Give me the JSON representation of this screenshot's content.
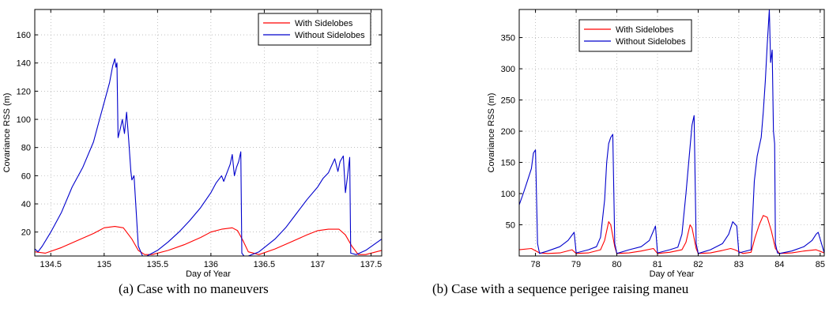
{
  "chart_data": [
    {
      "type": "line",
      "caption": "(a) Case with no maneuvers",
      "xlabel": "Day of Year",
      "ylabel": "Covariance RSS (m)",
      "xlim": [
        134.35,
        137.6
      ],
      "ylim": [
        3,
        178
      ],
      "xticks": [
        134.5,
        135,
        135.5,
        136,
        136.5,
        137,
        137.5
      ],
      "xtick_labels": [
        "134.5",
        "135",
        "135.5",
        "136",
        "136.5",
        "137",
        "137.5"
      ],
      "yticks": [
        20,
        40,
        60,
        80,
        100,
        120,
        140,
        160
      ],
      "ytick_labels": [
        "20",
        "40",
        "60",
        "80",
        "100",
        "120",
        "140",
        "160"
      ],
      "grid": true,
      "legend_position": "top-right",
      "series": [
        {
          "name": "With Sidelobes",
          "color": "#ff0000",
          "x": [
            134.35,
            134.45,
            134.6,
            134.75,
            134.9,
            135.0,
            135.1,
            135.18,
            135.26,
            135.32,
            135.38,
            135.45,
            135.6,
            135.75,
            135.9,
            136.0,
            136.1,
            136.2,
            136.25,
            136.3,
            136.35,
            136.45,
            136.6,
            136.75,
            136.9,
            137.0,
            137.1,
            137.2,
            137.26,
            137.32,
            137.38,
            137.45,
            137.6
          ],
          "y": [
            6,
            5,
            9,
            14,
            19,
            23,
            24,
            23,
            15,
            7,
            4,
            4,
            7,
            11,
            16,
            20,
            22,
            23,
            21,
            14,
            6,
            4,
            8,
            13,
            18,
            21,
            22,
            22,
            18,
            10,
            4,
            4,
            7
          ]
        },
        {
          "name": "Without Sidelobes",
          "color": "#0000cc",
          "x": [
            134.35,
            134.38,
            134.42,
            134.5,
            134.6,
            134.7,
            134.8,
            134.9,
            134.95,
            135.0,
            135.05,
            135.08,
            135.1,
            135.11,
            135.12,
            135.13,
            135.15,
            135.17,
            135.19,
            135.21,
            135.23,
            135.25,
            135.26,
            135.28,
            135.32,
            135.36,
            135.4,
            135.5,
            135.6,
            135.7,
            135.8,
            135.9,
            136.0,
            136.05,
            136.1,
            136.12,
            136.15,
            136.18,
            136.2,
            136.22,
            136.24,
            136.26,
            136.28,
            136.29,
            136.31,
            136.35,
            136.45,
            136.6,
            136.7,
            136.8,
            136.9,
            137.0,
            137.05,
            137.1,
            137.13,
            137.16,
            137.19,
            137.21,
            137.24,
            137.26,
            137.28,
            137.3,
            137.31,
            137.36,
            137.45,
            137.6
          ],
          "y": [
            8,
            6,
            10,
            20,
            34,
            52,
            66,
            84,
            98,
            112,
            126,
            138,
            143,
            137,
            140,
            87,
            93,
            100,
            90,
            105,
            85,
            63,
            57,
            60,
            10,
            3,
            3,
            7,
            13,
            20,
            28,
            37,
            48,
            55,
            60,
            56,
            62,
            68,
            75,
            60,
            66,
            70,
            77,
            5,
            3,
            3,
            6,
            15,
            23,
            33,
            43,
            52,
            58,
            62,
            67,
            72,
            63,
            70,
            74,
            48,
            60,
            73,
            5,
            4,
            7,
            15
          ]
        }
      ]
    },
    {
      "type": "line",
      "caption": "(b) Case with a sequence perigee raising maneu",
      "xlabel": "Day of Year",
      "ylabel": "Covariance RSS (m)",
      "xlim": [
        77.6,
        85.1
      ],
      "ylim": [
        0,
        395
      ],
      "xticks": [
        78,
        79,
        80,
        81,
        82,
        83,
        84,
        85
      ],
      "xtick_labels": [
        "78",
        "79",
        "80",
        "81",
        "82",
        "83",
        "84",
        "85"
      ],
      "yticks": [
        50,
        100,
        150,
        200,
        250,
        300,
        350
      ],
      "ytick_labels": [
        "50",
        "100",
        "150",
        "200",
        "250",
        "300",
        "350"
      ],
      "grid": true,
      "legend_position": "top-left",
      "series": [
        {
          "name": "With Sidelobes",
          "color": "#ff0000",
          "x": [
            77.6,
            77.9,
            78.1,
            78.3,
            78.6,
            78.9,
            79.0,
            79.3,
            79.6,
            79.7,
            79.8,
            79.85,
            79.95,
            80.0,
            80.3,
            80.6,
            80.9,
            81.0,
            81.3,
            81.6,
            81.7,
            81.8,
            81.85,
            81.95,
            82.0,
            82.3,
            82.6,
            82.8,
            82.9,
            83.1,
            83.3,
            83.4,
            83.5,
            83.6,
            83.7,
            83.8,
            83.9,
            84.0,
            84.3,
            84.6,
            84.9,
            85.1
          ],
          "y": [
            10,
            12,
            5,
            4,
            5,
            10,
            4,
            5,
            10,
            25,
            55,
            50,
            15,
            4,
            5,
            8,
            12,
            4,
            6,
            10,
            22,
            50,
            45,
            12,
            4,
            5,
            9,
            12,
            10,
            4,
            6,
            30,
            50,
            65,
            62,
            40,
            12,
            4,
            5,
            8,
            10,
            5
          ]
        },
        {
          "name": "Without Sidelobes",
          "color": "#0000cc",
          "x": [
            77.6,
            77.7,
            77.8,
            77.9,
            77.95,
            78.0,
            78.05,
            78.1,
            78.3,
            78.6,
            78.8,
            78.95,
            79.0,
            79.3,
            79.5,
            79.6,
            79.7,
            79.75,
            79.8,
            79.85,
            79.9,
            79.95,
            80.0,
            80.3,
            80.6,
            80.8,
            80.9,
            80.95,
            81.0,
            81.3,
            81.5,
            81.6,
            81.7,
            81.8,
            81.85,
            81.9,
            81.95,
            82.0,
            82.3,
            82.6,
            82.75,
            82.85,
            82.95,
            83.0,
            83.3,
            83.38,
            83.45,
            83.55,
            83.6,
            83.65,
            83.7,
            83.75,
            83.78,
            83.82,
            83.85,
            83.88,
            83.9,
            83.95,
            84.0,
            84.3,
            84.6,
            84.8,
            84.9,
            84.95,
            85.1
          ],
          "y": [
            82,
            100,
            120,
            140,
            165,
            170,
            20,
            4,
            8,
            15,
            25,
            38,
            5,
            10,
            15,
            30,
            90,
            150,
            180,
            190,
            195,
            20,
            4,
            10,
            15,
            25,
            40,
            48,
            5,
            10,
            14,
            35,
            100,
            175,
            210,
            225,
            20,
            4,
            10,
            20,
            35,
            55,
            48,
            5,
            10,
            120,
            160,
            190,
            230,
            280,
            340,
            395,
            310,
            330,
            200,
            180,
            20,
            5,
            4,
            8,
            15,
            25,
            35,
            38,
            5
          ]
        }
      ]
    }
  ]
}
